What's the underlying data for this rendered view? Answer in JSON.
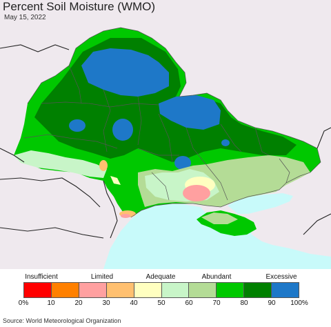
{
  "title": "Percent Soil Moisture (WMO)",
  "date": "May 15, 2022",
  "legend": {
    "categories": [
      "Insufficient",
      "Limited",
      "Adequate",
      "Abundant",
      "Excessive"
    ],
    "bins": [
      {
        "color": "#ff0000"
      },
      {
        "color": "#ff8000"
      },
      {
        "color": "#ffa0a0"
      },
      {
        "color": "#ffc070"
      },
      {
        "color": "#ffffc0"
      },
      {
        "color": "#c8f5c8"
      },
      {
        "color": "#b4dc96"
      },
      {
        "color": "#00c800"
      },
      {
        "color": "#008000"
      },
      {
        "color": "#1e78c8"
      }
    ],
    "ticks": [
      "0%",
      "10",
      "20",
      "30",
      "40",
      "50",
      "60",
      "70",
      "80",
      "90",
      "100%"
    ]
  },
  "map_colors": {
    "background_land": "#efe9ee",
    "sea": "#c8fafa",
    "border": "#555555"
  },
  "source": "Source: World Meteorological Organization"
}
